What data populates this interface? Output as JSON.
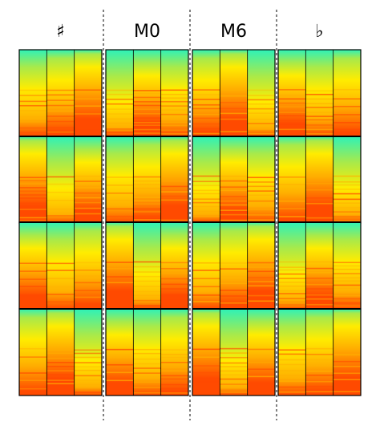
{
  "columns": [
    {
      "title": "♯"
    },
    {
      "title": "M0"
    },
    {
      "title": "M6"
    },
    {
      "title": "♭"
    }
  ],
  "colors": {
    "low": "#2ef2b8",
    "mid1": "#a8ea4a",
    "mid2": "#ffec00",
    "mid3": "#ffb000",
    "high": "#ff4a00",
    "grid": "#000000"
  },
  "grid": {
    "rows": 4,
    "strips_per_panel": 3
  }
}
